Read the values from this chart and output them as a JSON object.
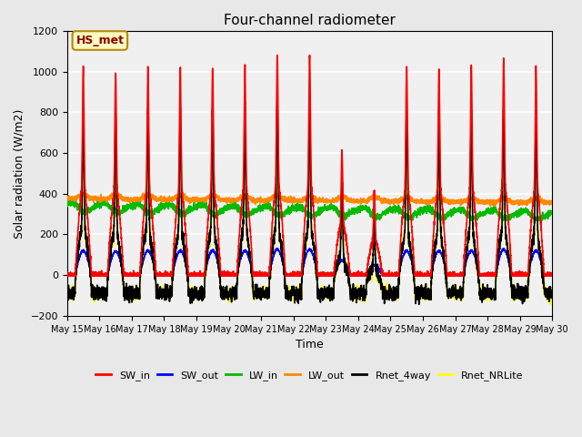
{
  "title": "Four-channel radiometer",
  "xlabel": "Time",
  "ylabel": "Solar radiation (W/m2)",
  "ylim": [
    -200,
    1200
  ],
  "yticks": [
    -200,
    0,
    200,
    400,
    600,
    800,
    1000,
    1200
  ],
  "n_days": 15,
  "points_per_day": 288,
  "annotation_text": "HS_met",
  "annotation_color": "#8B0000",
  "annotation_bg": "#FFFFC0",
  "annotation_border": "#B8860B",
  "series_colors": {
    "SW_in": "#FF0000",
    "SW_out": "#0000FF",
    "LW_in": "#00BB00",
    "LW_out": "#FF8800",
    "Rnet_4way": "#000000",
    "Rnet_NRLite": "#FFFF00"
  },
  "bg_color": "#E8E8E8",
  "plot_bg_color": "#F0F0F0",
  "xtick_labels": [
    "May 15",
    "May 16",
    "May 17",
    "May 18",
    "May 19",
    "May 20",
    "May 21",
    "May 22",
    "May 23",
    "May 24",
    "May 25",
    "May 26",
    "May 27",
    "May 28",
    "May 29",
    "May 30"
  ]
}
